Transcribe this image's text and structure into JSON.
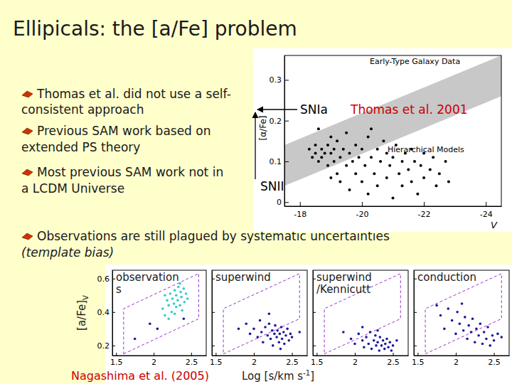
{
  "slide": {
    "title": "Ellipicals: the [a/Fe] problem",
    "bullets": [
      [
        "Thomas et al. did not use a self-",
        "consistent approach"
      ],
      [
        "Previous SAM work based on",
        "extended PS theory"
      ],
      [
        "Most previous SAM work not in",
        "a LCDM Universe"
      ],
      [
        "Observations are still plagued by systematic uncertainties",
        "(template bias)"
      ]
    ],
    "lower_figure": {
      "ylabel": "[a/Fe]",
      "ylabel_subscript": "V",
      "xlabel": [
        "Log [s/km s",
        "-1",
        "]"
      ],
      "credit": "Nagashima et al. (2005)"
    }
  },
  "chart_data": [
    {
      "type": "scatter",
      "xlabel": "V",
      "ylabel": "[α/Fe]",
      "xlim": [
        -17.5,
        -24.5
      ],
      "ylim": [
        -0.01,
        0.36
      ],
      "xticks": [
        -18,
        -20,
        -22,
        -24
      ],
      "yticks": [
        0,
        0.1,
        0.2,
        0.3
      ],
      "annotations": [
        "Early-Type Galaxy Data",
        "Hierarchical Models",
        "SNIa",
        "SNII",
        "Thomas et al. 2001"
      ],
      "series": [
        {
          "type": "area",
          "color": "#c8c8c8",
          "x": [
            -17.5,
            -24.5
          ],
          "lower": [
            0.04,
            0.26
          ],
          "upper": [
            0.14,
            0.36
          ]
        },
        {
          "type": "scatter",
          "marker": "circle",
          "color": "#000000",
          "x": [
            -18.3,
            -18.4,
            -18.5,
            -18.5,
            -18.6,
            -18.7,
            -18.7,
            -18.8,
            -18.9,
            -18.9,
            -19.0,
            -19.0,
            -19.1,
            -19.1,
            -19.2,
            -19.2,
            -19.3,
            -19.3,
            -19.4,
            -19.5,
            -19.5,
            -19.6,
            -19.6,
            -19.7,
            -19.8,
            -19.8,
            -19.9,
            -20.0,
            -20.0,
            -20.1,
            -20.2,
            -20.2,
            -20.3,
            -20.4,
            -20.5,
            -20.5,
            -20.6,
            -20.7,
            -20.8,
            -20.8,
            -20.9,
            -21.0,
            -21.0,
            -21.1,
            -21.2,
            -21.3,
            -21.3,
            -21.4,
            -21.5,
            -21.6,
            -21.6,
            -21.7,
            -21.8,
            -21.9,
            -22.0,
            -22.0,
            -22.2,
            -22.3,
            -22.4,
            -22.5,
            -22.7,
            -22.8,
            -18.6,
            -19.0,
            -20.3
          ],
          "values": [
            0.13,
            0.11,
            0.14,
            0.12,
            0.1,
            0.13,
            0.11,
            0.12,
            0.14,
            0.09,
            0.12,
            0.16,
            0.1,
            0.13,
            0.07,
            0.15,
            0.11,
            0.05,
            0.13,
            0.09,
            0.17,
            0.12,
            0.03,
            0.1,
            0.14,
            0.07,
            0.11,
            0.05,
            0.13,
            0.09,
            0.16,
            0.02,
            0.11,
            0.07,
            0.13,
            0.04,
            0.1,
            0.15,
            0.06,
            0.12,
            0.09,
            0.01,
            0.11,
            0.14,
            0.07,
            0.1,
            0.04,
            0.12,
            0.08,
            0.13,
            0.05,
            0.1,
            0.02,
            0.09,
            0.12,
            0.06,
            0.08,
            0.11,
            0.04,
            0.07,
            0.1,
            0.05,
            0.18,
            0.06,
            0.18
          ]
        }
      ]
    },
    {
      "type": "scatter",
      "title": [
        "observation",
        "s"
      ],
      "xlim": [
        1.45,
        2.7
      ],
      "ylim": [
        0.14,
        0.65
      ],
      "xticks": [
        1.5,
        2,
        2.5
      ],
      "yticks": [
        0.2,
        0.4,
        0.6
      ],
      "series": [
        {
          "type": "line",
          "line_style": "dashed",
          "color": "#9933cc",
          "x": [
            1.6,
            2.6,
            2.6,
            1.6,
            1.6
          ],
          "values": [
            0.15,
            0.36,
            0.63,
            0.42,
            0.15
          ]
        },
        {
          "type": "scatter",
          "marker": "circle",
          "color": "#33cccc",
          "x": [
            2.12,
            2.15,
            2.18,
            2.2,
            2.22,
            2.24,
            2.25,
            2.27,
            2.28,
            2.3,
            2.3,
            2.32,
            2.33,
            2.35,
            2.36,
            2.37,
            2.38,
            2.4,
            2.41,
            2.43,
            2.2,
            2.28,
            2.35,
            2.45,
            2.15
          ],
          "values": [
            0.42,
            0.38,
            0.47,
            0.44,
            0.51,
            0.4,
            0.48,
            0.45,
            0.53,
            0.43,
            0.5,
            0.47,
            0.55,
            0.44,
            0.52,
            0.49,
            0.41,
            0.54,
            0.46,
            0.51,
            0.36,
            0.39,
            0.57,
            0.48,
            0.5
          ]
        },
        {
          "type": "scatter",
          "marker": "circle",
          "color": "#1a1a99",
          "x": [
            1.75,
            1.95,
            2.05,
            2.4
          ],
          "values": [
            0.24,
            0.33,
            0.3,
            0.36
          ]
        }
      ]
    },
    {
      "type": "scatter",
      "title": [
        "superwind"
      ],
      "tick_labels": "x",
      "xlim": [
        1.45,
        2.7
      ],
      "ylim": [
        0.14,
        0.65
      ],
      "xticks": [
        1.5,
        2,
        2.5
      ],
      "yticks": [
        0.2,
        0.4,
        0.6
      ],
      "series": [
        {
          "type": "line",
          "line_style": "dashed",
          "color": "#9933cc",
          "x": [
            1.6,
            2.6,
            2.6,
            1.6,
            1.6
          ],
          "values": [
            0.15,
            0.36,
            0.63,
            0.42,
            0.15
          ]
        },
        {
          "type": "scatter",
          "marker": "circle",
          "color": "#1a1a99",
          "x": [
            1.9,
            1.95,
            2.0,
            2.05,
            2.08,
            2.1,
            2.12,
            2.15,
            2.18,
            2.2,
            2.22,
            2.24,
            2.25,
            2.27,
            2.28,
            2.3,
            2.31,
            2.33,
            2.34,
            2.36,
            2.37,
            2.39,
            2.4,
            2.42,
            2.44,
            2.46,
            2.48,
            2.5,
            2.2,
            2.35,
            1.8,
            2.6
          ],
          "values": [
            0.33,
            0.27,
            0.3,
            0.25,
            0.35,
            0.28,
            0.22,
            0.31,
            0.26,
            0.33,
            0.24,
            0.29,
            0.2,
            0.27,
            0.32,
            0.25,
            0.29,
            0.22,
            0.27,
            0.31,
            0.24,
            0.28,
            0.21,
            0.26,
            0.3,
            0.23,
            0.27,
            0.25,
            0.39,
            0.18,
            0.3,
            0.28
          ]
        }
      ]
    },
    {
      "type": "scatter",
      "title": [
        "superwind",
        "/Kennicutt"
      ],
      "tick_labels": "x",
      "xlim": [
        1.45,
        2.7
      ],
      "ylim": [
        0.14,
        0.65
      ],
      "xticks": [
        1.5,
        2,
        2.5
      ],
      "yticks": [
        0.2,
        0.4,
        0.6
      ],
      "series": [
        {
          "type": "line",
          "line_style": "dashed",
          "color": "#9933cc",
          "x": [
            1.6,
            2.6,
            2.6,
            1.6,
            1.6
          ],
          "values": [
            0.15,
            0.36,
            0.63,
            0.42,
            0.15
          ]
        },
        {
          "type": "scatter",
          "marker": "circle",
          "color": "#1a1a99",
          "x": [
            1.85,
            1.95,
            2.0,
            2.05,
            2.1,
            2.12,
            2.15,
            2.18,
            2.2,
            2.22,
            2.25,
            2.27,
            2.28,
            2.3,
            2.32,
            2.33,
            2.35,
            2.37,
            2.39,
            2.4,
            2.42,
            2.44,
            2.46,
            2.48,
            2.5,
            2.55,
            2.1,
            2.3
          ],
          "values": [
            0.28,
            0.24,
            0.21,
            0.27,
            0.23,
            0.19,
            0.25,
            0.21,
            0.28,
            0.18,
            0.23,
            0.26,
            0.2,
            0.22,
            0.17,
            0.25,
            0.2,
            0.23,
            0.18,
            0.21,
            0.24,
            0.19,
            0.22,
            0.17,
            0.2,
            0.23,
            0.31,
            0.29
          ]
        }
      ]
    },
    {
      "type": "scatter",
      "title": [
        "conduction"
      ],
      "tick_labels": "x",
      "xlim": [
        1.45,
        2.7
      ],
      "ylim": [
        0.14,
        0.65
      ],
      "xticks": [
        1.5,
        2,
        2.5
      ],
      "yticks": [
        0.2,
        0.4,
        0.6
      ],
      "series": [
        {
          "type": "line",
          "line_style": "dashed",
          "color": "#9933cc",
          "x": [
            1.6,
            2.6,
            2.6,
            1.6,
            1.6
          ],
          "values": [
            0.15,
            0.36,
            0.63,
            0.42,
            0.15
          ]
        },
        {
          "type": "scatter",
          "marker": "circle",
          "color": "#1a1a99",
          "x": [
            1.8,
            1.85,
            1.9,
            1.95,
            2.0,
            2.02,
            2.05,
            2.08,
            2.1,
            2.12,
            2.15,
            2.17,
            2.2,
            2.22,
            2.25,
            2.27,
            2.3,
            2.32,
            2.35,
            2.37,
            2.4,
            2.42,
            2.45,
            2.48,
            2.5,
            2.55,
            1.75,
            2.6
          ],
          "values": [
            0.38,
            0.3,
            0.42,
            0.35,
            0.27,
            0.4,
            0.33,
            0.45,
            0.29,
            0.37,
            0.24,
            0.32,
            0.28,
            0.36,
            0.22,
            0.3,
            0.26,
            0.33,
            0.21,
            0.28,
            0.24,
            0.31,
            0.2,
            0.26,
            0.23,
            0.27,
            0.44,
            0.25
          ]
        }
      ]
    }
  ]
}
